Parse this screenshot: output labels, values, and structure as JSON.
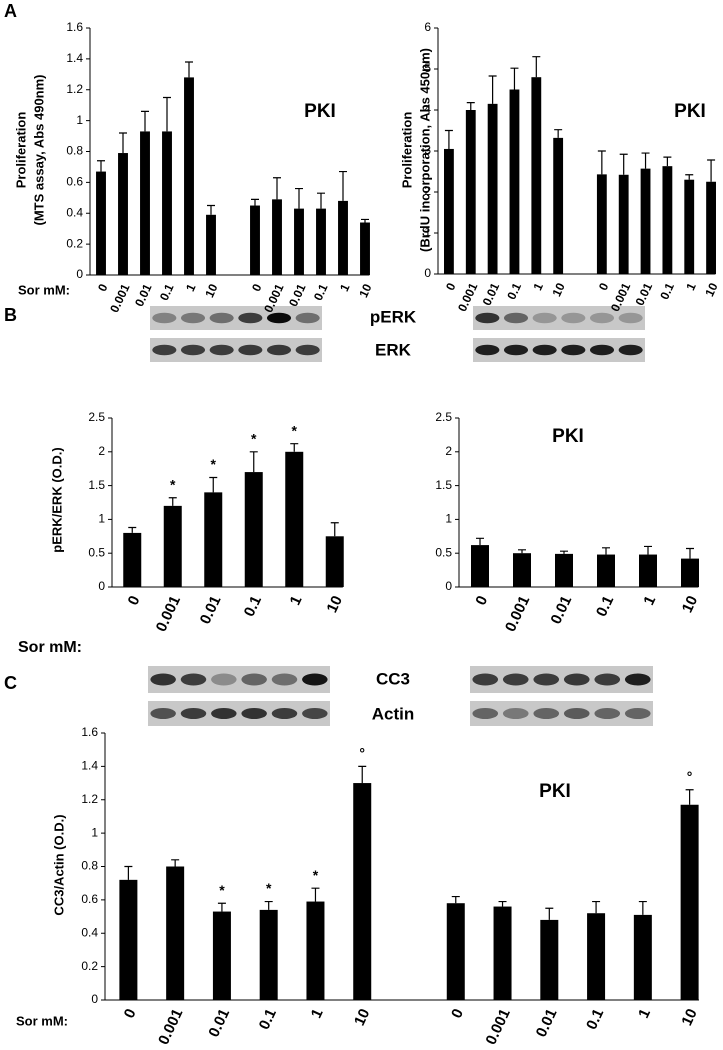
{
  "panel_labels": [
    "A",
    "B",
    "C"
  ],
  "blot_labels": [
    "pERK",
    "ERK",
    "CC3",
    "Actin"
  ],
  "chart_data": [
    {
      "type": "bar",
      "ylabel": [
        "Proliferation",
        "(MTS assay, Abs 490nm)"
      ],
      "annotation": "PKI",
      "x_prefix": "Sor mM:",
      "color": "#000000",
      "categories": [
        "0",
        "0.001",
        "0.01",
        "0.1",
        "1",
        "10",
        null,
        "0",
        "0.001",
        "0.01",
        "0.1",
        "1",
        "10"
      ],
      "values": [
        0.67,
        0.79,
        0.93,
        0.93,
        1.28,
        0.39,
        null,
        0.45,
        0.49,
        0.43,
        0.43,
        0.48,
        0.34
      ],
      "errors": [
        0.07,
        0.13,
        0.13,
        0.22,
        0.1,
        0.06,
        null,
        0.04,
        0.14,
        0.13,
        0.1,
        0.19,
        0.02
      ],
      "ylim": [
        0,
        1.6
      ],
      "yticks": [
        0,
        0.2,
        0.4,
        0.6,
        0.8,
        1,
        1.2,
        1.4,
        1.6
      ]
    },
    {
      "type": "bar",
      "ylabel": [
        "Proliferation",
        "(BrdU incorporation, Abs 450nm)"
      ],
      "annotation": "PKI",
      "color": "#000000",
      "categories": [
        "0",
        "0.001",
        "0.01",
        "0.1",
        "1",
        "10",
        null,
        "0",
        "0.001",
        "0.01",
        "0.1",
        "1",
        "10"
      ],
      "values": [
        3.05,
        4.0,
        4.15,
        4.5,
        4.8,
        3.32,
        null,
        2.43,
        2.42,
        2.57,
        2.63,
        2.3,
        2.25
      ],
      "errors": [
        0.45,
        0.18,
        0.68,
        0.52,
        0.5,
        0.2,
        null,
        0.57,
        0.5,
        0.38,
        0.22,
        0.12,
        0.53
      ],
      "ylim": [
        0,
        6
      ],
      "yticks": [
        0,
        1,
        2,
        3,
        4,
        5,
        6
      ]
    },
    {
      "type": "bar",
      "ylabel": [
        "pERK/ERK (O.D.)"
      ],
      "x_prefix": "Sor mM:",
      "color": "#000000",
      "categories": [
        "0",
        "0.001",
        "0.01",
        "0.1",
        "1",
        "10"
      ],
      "values": [
        0.8,
        1.2,
        1.4,
        1.7,
        2.0,
        0.75
      ],
      "errors": [
        0.08,
        0.12,
        0.22,
        0.3,
        0.12,
        0.2
      ],
      "markers": [
        null,
        "*",
        "*",
        "*",
        "*",
        null
      ],
      "ylim": [
        0,
        2.5
      ],
      "yticks": [
        0,
        0.5,
        1,
        1.5,
        2,
        2.5
      ]
    },
    {
      "type": "bar",
      "annotation": "PKI",
      "color": "#000000",
      "categories": [
        "0",
        "0.001",
        "0.01",
        "0.1",
        "1",
        "10"
      ],
      "values": [
        0.62,
        0.5,
        0.49,
        0.48,
        0.48,
        0.42
      ],
      "errors": [
        0.1,
        0.05,
        0.04,
        0.1,
        0.12,
        0.15
      ],
      "ylim": [
        0,
        2.5
      ],
      "yticks": [
        0,
        0.5,
        1,
        1.5,
        2,
        2.5
      ]
    },
    {
      "type": "bar",
      "ylabel": [
        "CC3/Actin (O.D.)"
      ],
      "annotation": "PKI",
      "x_prefix": "Sor mM:",
      "color": "#000000",
      "categories": [
        "0",
        "0.001",
        "0.01",
        "0.1",
        "1",
        "10",
        null,
        "0",
        "0.001",
        "0.01",
        "0.1",
        "1",
        "10"
      ],
      "values": [
        0.72,
        0.8,
        0.53,
        0.54,
        0.59,
        1.3,
        null,
        0.58,
        0.56,
        0.48,
        0.52,
        0.51,
        1.17
      ],
      "errors": [
        0.08,
        0.04,
        0.05,
        0.05,
        0.08,
        0.1,
        null,
        0.04,
        0.03,
        0.07,
        0.07,
        0.08,
        0.09
      ],
      "markers": [
        null,
        null,
        "*",
        "*",
        "*",
        "°",
        null,
        null,
        null,
        null,
        null,
        null,
        "°"
      ],
      "ylim": [
        0,
        1.6
      ],
      "yticks": [
        0,
        0.2,
        0.4,
        0.6,
        0.8,
        1,
        1.2,
        1.4,
        1.6
      ]
    }
  ]
}
